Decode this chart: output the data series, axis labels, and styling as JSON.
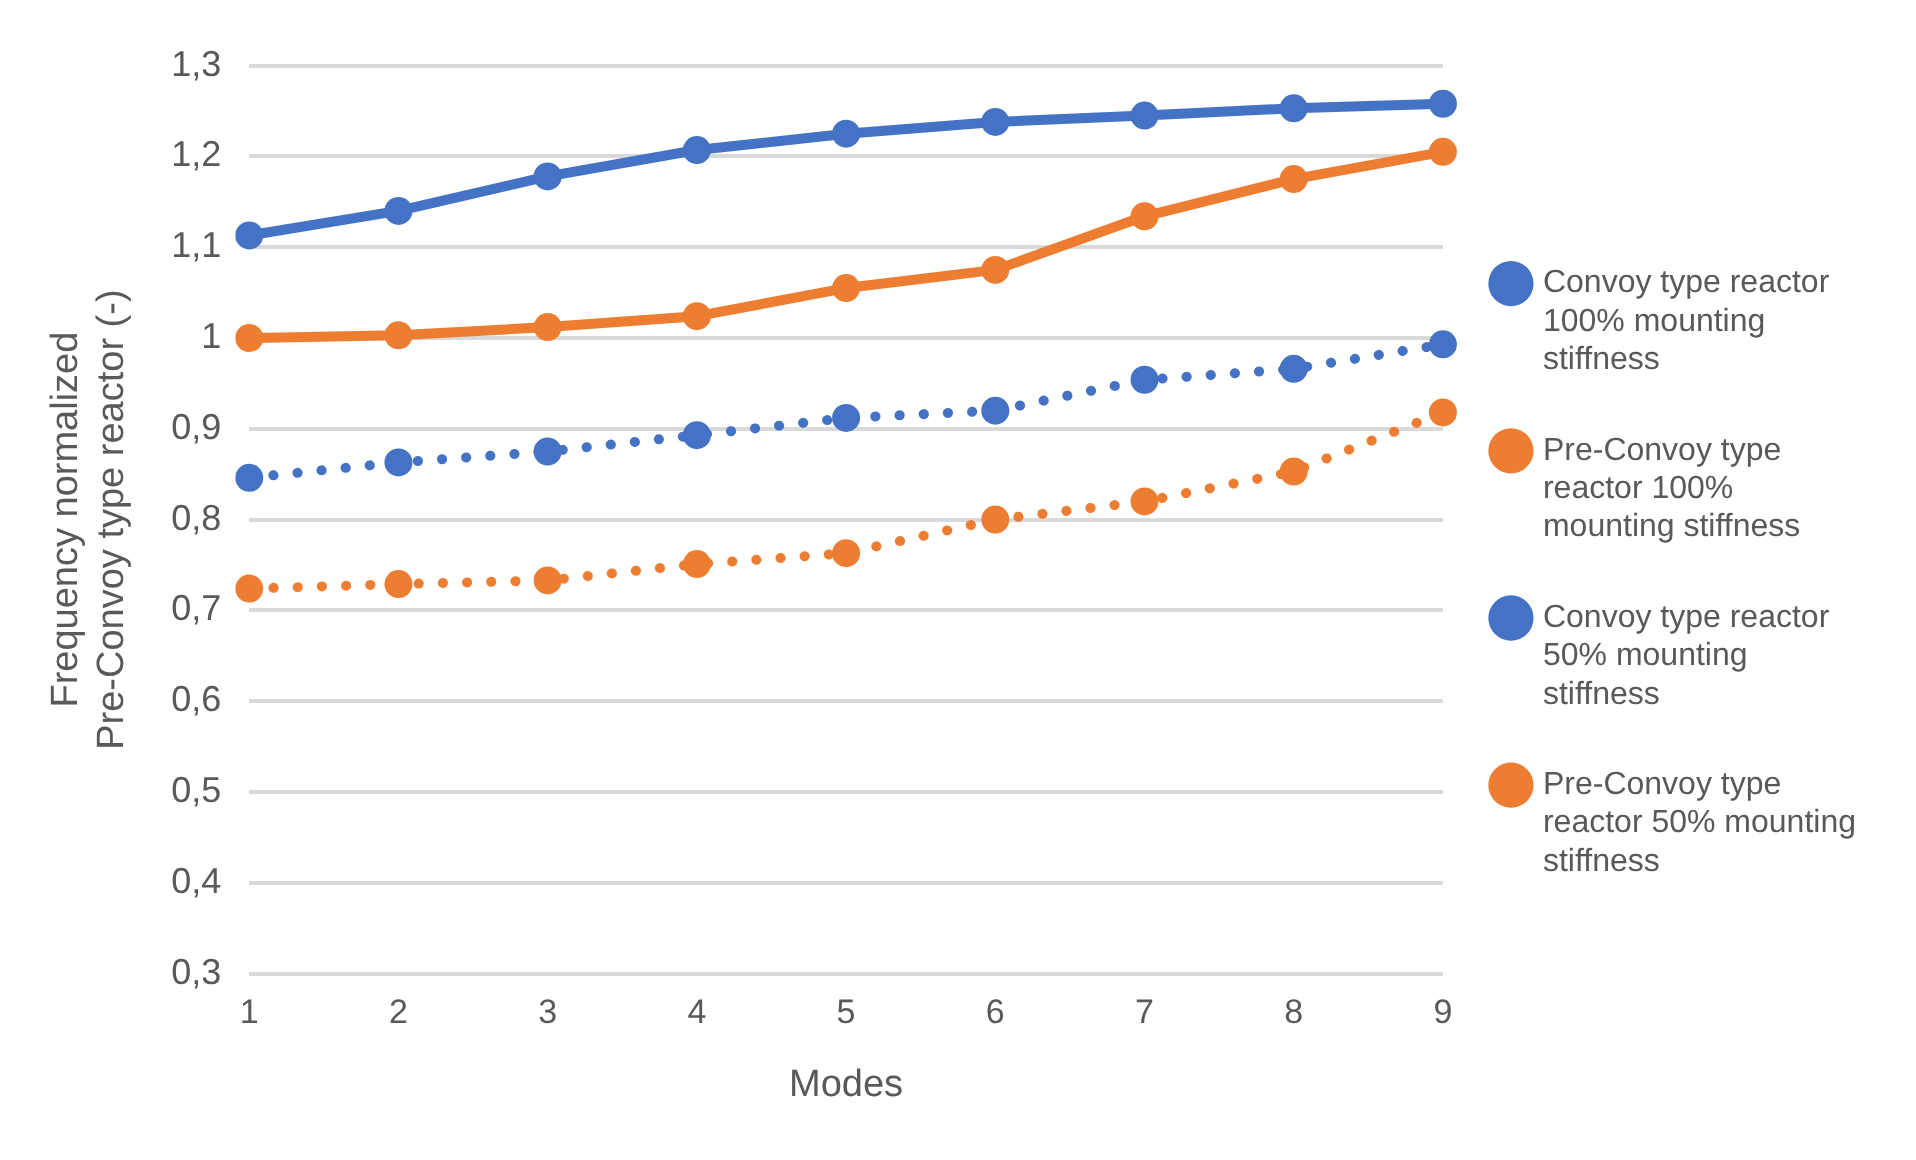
{
  "chart_data": {
    "type": "line",
    "xlabel": "Modes",
    "ylabel": "Frequency normalized\nPre-Convoy type reactor (-)",
    "categories": [
      "1",
      "2",
      "3",
      "4",
      "5",
      "6",
      "7",
      "8",
      "9"
    ],
    "series": [
      {
        "name": "Convoy type reactor 100% mounting stiffness",
        "color": "#4472c4",
        "line_style": "solid",
        "values": [
          1.113,
          1.14,
          1.178,
          1.207,
          1.225,
          1.238,
          1.245,
          1.253,
          1.258
        ]
      },
      {
        "name": "Pre-Convoy type reactor 100% mounting stiffness",
        "color": "#ed7d31",
        "line_style": "solid",
        "values": [
          1.0,
          1.003,
          1.012,
          1.024,
          1.055,
          1.075,
          1.134,
          1.175,
          1.205
        ]
      },
      {
        "name": "Convoy type reactor 50% mounting stiffness",
        "color": "#4472c4",
        "line_style": "dotted",
        "values": [
          0.846,
          0.863,
          0.875,
          0.893,
          0.912,
          0.92,
          0.954,
          0.966,
          0.993
        ]
      },
      {
        "name": "Pre-Convoy type reactor 50% mounting stiffness",
        "color": "#ed7d31",
        "line_style": "dotted",
        "values": [
          0.724,
          0.729,
          0.733,
          0.751,
          0.763,
          0.8,
          0.82,
          0.853,
          0.918
        ]
      }
    ],
    "ylim": [
      0.3,
      1.3
    ],
    "yticks": [
      {
        "value": 0.3,
        "label": "0,3"
      },
      {
        "value": 0.4,
        "label": "0,4"
      },
      {
        "value": 0.5,
        "label": "0,5"
      },
      {
        "value": 0.6,
        "label": "0,6"
      },
      {
        "value": 0.7,
        "label": "0,7"
      },
      {
        "value": 0.8,
        "label": "0,8"
      },
      {
        "value": 0.9,
        "label": "0,9"
      },
      {
        "value": 1,
        "label": "1"
      },
      {
        "value": 1.1,
        "label": "1,1"
      },
      {
        "value": 1.2,
        "label": "1,2"
      },
      {
        "value": 1.3,
        "label": "1,3"
      }
    ],
    "grid": "y",
    "legend": "right",
    "marker": "circle"
  }
}
